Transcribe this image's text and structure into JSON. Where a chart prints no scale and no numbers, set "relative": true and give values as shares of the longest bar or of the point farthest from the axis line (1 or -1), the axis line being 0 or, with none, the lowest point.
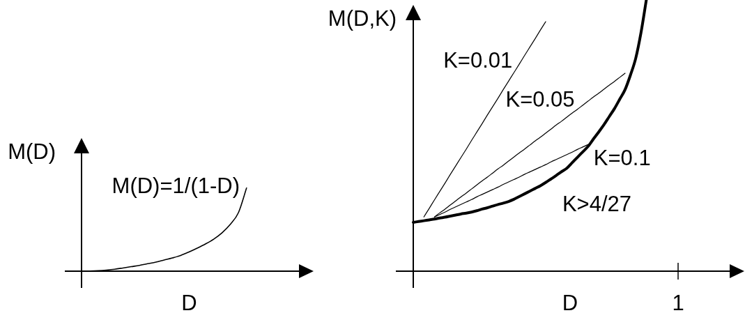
{
  "chart_data": [
    {
      "type": "line",
      "relative": true,
      "ylabel": "M(D)",
      "xlabel": "D",
      "legend": false,
      "marker": "none",
      "categories": [
        null,
        null,
        null,
        null,
        null,
        null,
        null,
        null,
        null,
        null,
        null,
        null,
        null,
        null,
        null,
        null,
        null,
        null,
        null,
        null,
        null
      ],
      "series": [
        {
          "name": "M(D)=1/(1-D)",
          "color": "#000000",
          "values": [
            0,
            0.002,
            0.006,
            0.013,
            0.023,
            0.038,
            0.054,
            0.069,
            0.089,
            0.108,
            0.133,
            0.158,
            0.188,
            0.229,
            0.275,
            0.325,
            0.383,
            0.458,
            0.558,
            0.7,
            1
          ]
        }
      ]
    },
    {
      "type": "line",
      "relative": true,
      "ylabel": "M(D,K)",
      "xlabel": "D",
      "legend": false,
      "marker": "none",
      "annotations": [
        "K>4/27",
        "1"
      ],
      "categories": [
        null,
        null,
        null,
        null,
        null,
        null,
        null,
        null,
        null,
        null,
        null,
        null,
        null,
        null,
        null,
        null,
        null,
        null,
        null,
        null,
        null,
        null,
        null,
        null,
        null,
        null,
        null,
        null,
        null,
        null,
        null,
        null,
        null,
        null,
        null,
        null,
        null,
        null,
        null,
        null,
        null,
        null,
        null,
        null,
        null,
        null,
        null,
        null,
        null,
        null,
        null
      ],
      "series": [
        {
          "color": "#000000",
          "values": [
            0.18,
            0.183,
            0.186,
            0.189,
            0.192,
            0.196,
            0.199,
            0.203,
            0.207,
            0.211,
            0.214,
            0.218,
            0.223,
            0.229,
            0.234,
            0.24,
            0.246,
            0.251,
            0.257,
            0.265,
            0.275,
            0.285,
            0.295,
            0.305,
            0.315,
            0.327,
            0.34,
            0.353,
            0.367,
            0.38,
            0.4,
            0.42,
            0.44,
            0.46,
            0.487,
            0.513,
            0.54,
            0.57,
            0.6,
            0.635,
            0.67,
            0.723,
            0.785,
            0.88,
            1,
            null,
            null,
            null,
            null,
            null,
            null
          ]
        },
        {
          "name": "K=0.01",
          "color": "#000000",
          "values": [
            null,
            null,
            0.2,
            0.231,
            0.263,
            0.294,
            0.325,
            0.357,
            0.388,
            0.419,
            0.45,
            0.482,
            0.513,
            0.544,
            0.576,
            0.607,
            0.638,
            0.67,
            0.701,
            0.732,
            0.763,
            0.795,
            0.826,
            0.857,
            0.889,
            0.92,
            null,
            null,
            null,
            null,
            null,
            null,
            null,
            null,
            null,
            null,
            null,
            null,
            null,
            null,
            null,
            null,
            null,
            null,
            null,
            null,
            null,
            null,
            null,
            null,
            null
          ]
        },
        {
          "name": "K=0.05",
          "color": "#000000",
          "values": [
            null,
            null,
            null,
            null,
            0.2,
            0.215,
            0.229,
            0.244,
            0.259,
            0.274,
            0.288,
            0.303,
            0.318,
            0.333,
            0.347,
            0.362,
            0.377,
            0.391,
            0.406,
            0.421,
            0.436,
            0.45,
            0.465,
            0.48,
            0.494,
            0.509,
            0.524,
            0.539,
            0.553,
            0.568,
            0.583,
            0.597,
            0.612,
            0.627,
            0.642,
            0.656,
            0.671,
            0.686,
            0.7,
            0.715,
            0.73,
            null,
            null,
            null,
            null,
            null,
            null,
            null,
            null,
            null,
            null
          ]
        },
        {
          "name": "K=0.1",
          "color": "#000000",
          "values": [
            null,
            null,
            null,
            null,
            0.2,
            0.209,
            0.218,
            0.228,
            0.237,
            0.246,
            0.255,
            0.264,
            0.274,
            0.283,
            0.292,
            0.301,
            0.31,
            0.32,
            0.329,
            0.338,
            0.347,
            0.357,
            0.366,
            0.375,
            0.384,
            0.393,
            0.403,
            0.412,
            0.421,
            0.43,
            0.439,
            0.449,
            0.458,
            0.467,
            null,
            null,
            null,
            null,
            null,
            null,
            null,
            null,
            null,
            null,
            null,
            null,
            null,
            null,
            null,
            null,
            null
          ]
        }
      ]
    }
  ]
}
